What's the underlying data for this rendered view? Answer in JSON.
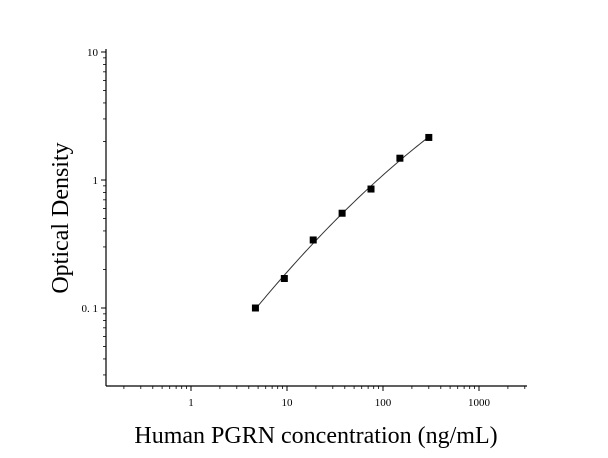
{
  "chart_data": {
    "type": "scatter",
    "xlabel": "Human PGRN concentration (ng/mL)",
    "ylabel": "Optical Density",
    "xscale": "log",
    "yscale": "log",
    "xlim": [
      0.1,
      3000
    ],
    "ylim": [
      0.01,
      10
    ],
    "x_ticks": [
      1,
      10,
      100,
      1000
    ],
    "x_tick_labels": [
      "1",
      "10",
      "100",
      "1000"
    ],
    "y_ticks": [
      0.1,
      1,
      10
    ],
    "y_tick_labels": [
      "0. 1",
      "1",
      "10"
    ],
    "grid": false,
    "legend": "none",
    "series": [
      {
        "marker": "square",
        "x": [
          4.69,
          9.38,
          18.75,
          37.5,
          75,
          150,
          300
        ],
        "y": [
          0.1,
          0.17,
          0.34,
          0.55,
          0.85,
          1.48,
          2.15
        ]
      }
    ],
    "fit_curve": true
  }
}
